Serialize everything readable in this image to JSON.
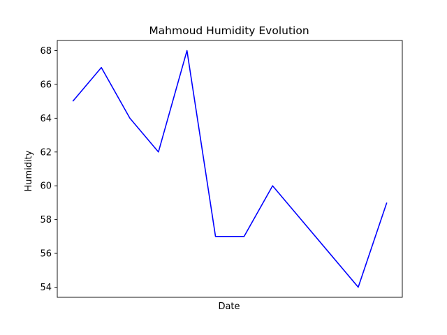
{
  "chart_data": {
    "type": "line",
    "title": "Mahmoud Humidity Evolution",
    "xlabel": "Date",
    "ylabel": "Humidity",
    "x_tick_labels_visible": false,
    "ylim": [
      53.4,
      68.6
    ],
    "yticks": [
      54,
      56,
      58,
      60,
      62,
      64,
      66,
      68
    ],
    "grid": false,
    "legend": "none",
    "series": [
      {
        "color": "#0000ff",
        "values": [
          65,
          67,
          64,
          62,
          68,
          57,
          57,
          60,
          58,
          56,
          54,
          59
        ]
      }
    ]
  }
}
